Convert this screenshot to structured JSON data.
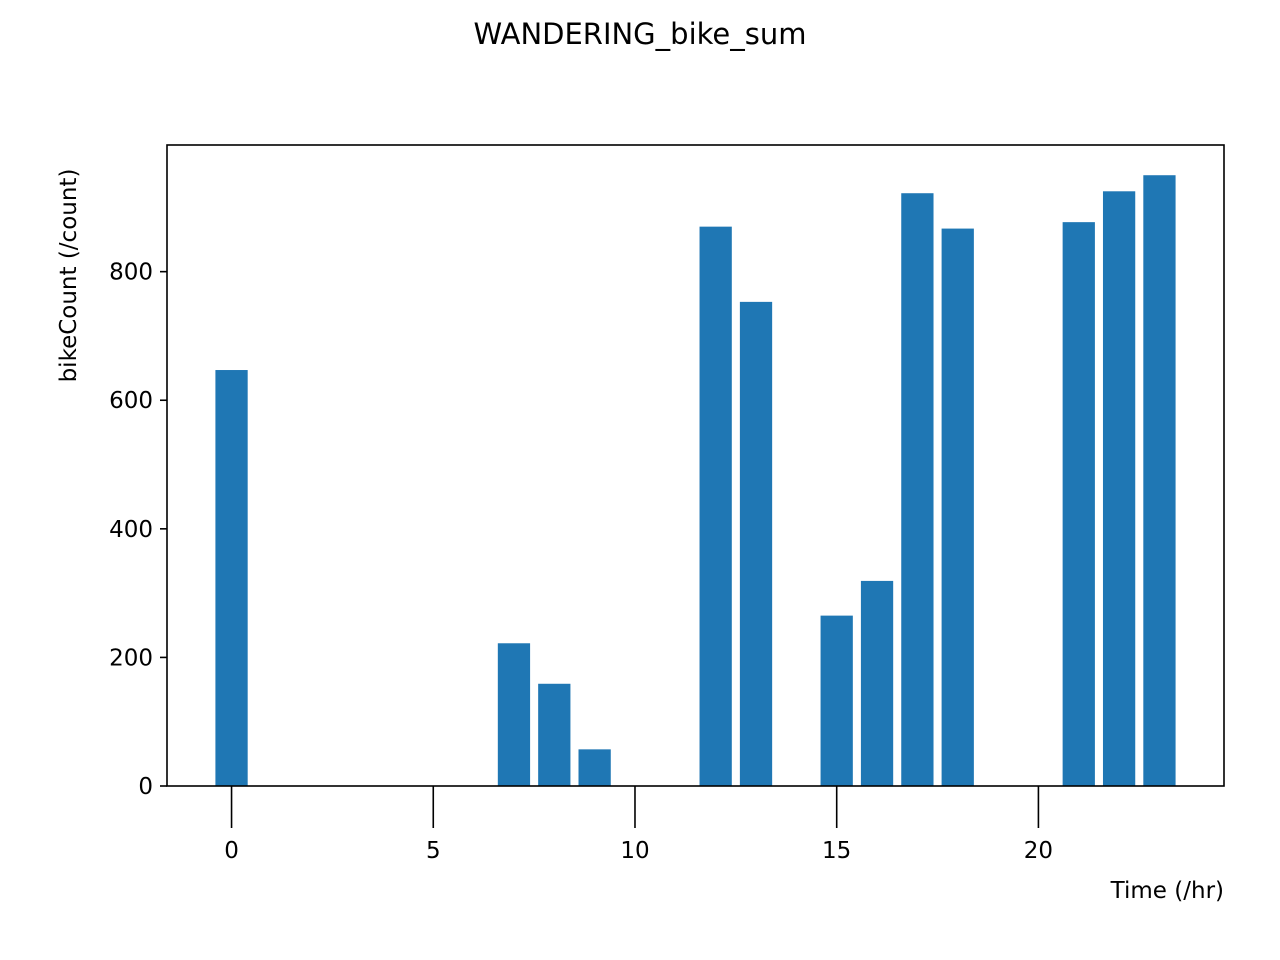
{
  "chart_data": {
    "type": "bar",
    "title": "WANDERING_bike_sum",
    "xlabel": "Time (/hr)",
    "ylabel": "bikeCount (/count)",
    "x": [
      0,
      7,
      8,
      9,
      12,
      13,
      15,
      16,
      17,
      18,
      21,
      22,
      23
    ],
    "values": [
      647,
      222,
      159,
      57,
      870,
      753,
      265,
      319,
      922,
      867,
      877,
      925,
      950
    ],
    "xlim": [
      -1.6,
      24.6
    ],
    "ylim": [
      0,
      997
    ],
    "xticks": [
      0,
      5,
      10,
      15,
      20
    ],
    "yticks": [
      0,
      200,
      400,
      600,
      800
    ],
    "bar_width": 0.8,
    "bar_color": "#1f77b4",
    "grid": false,
    "legend": "none"
  }
}
